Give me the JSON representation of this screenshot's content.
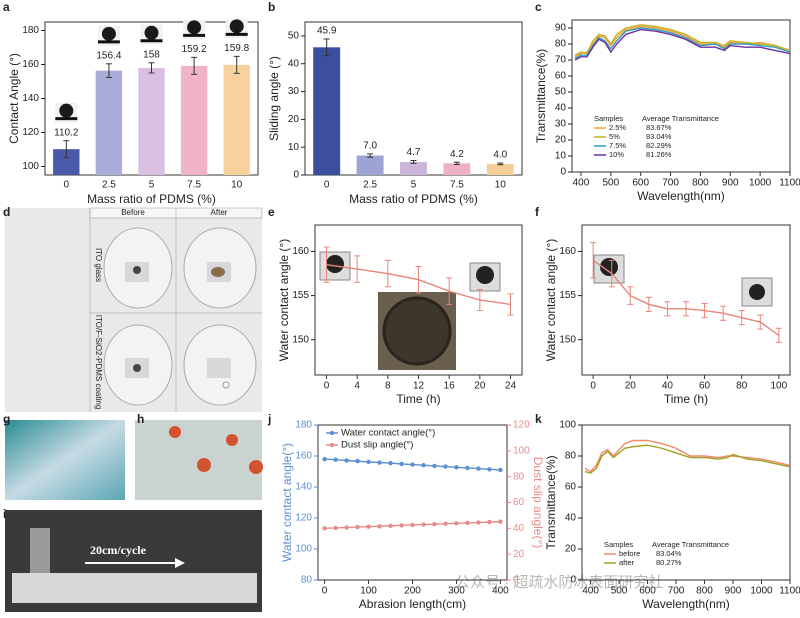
{
  "panel_labels": [
    "a",
    "b",
    "c",
    "d",
    "e",
    "f",
    "g",
    "h",
    "i",
    "j",
    "k"
  ],
  "photos": {
    "d": {
      "columns": [
        "Before",
        "After"
      ],
      "rows": [
        "ITO glass",
        "ITO/F-SiO2-PDMS coating"
      ]
    },
    "i": {
      "caption": "20cm/cycle"
    }
  },
  "watermark": "公众号 · 超疏水防冰表面研究社",
  "chart_data": [
    {
      "type": "bar",
      "xlabel": "Mass ratio of PDMS (%)",
      "ylabel": "Contact Angle (°)",
      "categories": [
        "0",
        "2.5",
        "5",
        "7.5",
        "10"
      ],
      "values": [
        110.2,
        156.4,
        158,
        159.2,
        159.8
      ],
      "errors": [
        5,
        4,
        3,
        5,
        5
      ],
      "colors": [
        "#4a5aa8",
        "#a9abd8",
        "#d9bfe0",
        "#f0b3c8",
        "#f7d29c"
      ],
      "droplets": true,
      "ylim": [
        95,
        185
      ],
      "yticks": [
        100,
        120,
        140,
        160,
        180
      ]
    },
    {
      "type": "bar",
      "xlabel": "Mass ratio of PDMS (%)",
      "ylabel": "Sliding angle (°)",
      "categories": [
        "0",
        "2.5",
        "5",
        "7.5",
        "10"
      ],
      "values": [
        45.9,
        7.0,
        4.7,
        4.2,
        4.0
      ],
      "value_labels": [
        "45.9",
        "7.0",
        "4.7",
        "4.2",
        "4.0"
      ],
      "errors": [
        3,
        0.6,
        0.5,
        0.4,
        0.3
      ],
      "colors": [
        "#3b4f9c",
        "#9da3d4",
        "#cdb6dc",
        "#eeb0c6",
        "#f6cf98"
      ],
      "ylim": [
        0,
        55
      ],
      "yticks": [
        0,
        10,
        20,
        30,
        40,
        50
      ]
    },
    {
      "type": "line",
      "xlabel": "Wavelength(nm)",
      "ylabel": "Transmittance(%)",
      "x": [
        380,
        400,
        420,
        440,
        460,
        480,
        500,
        520,
        550,
        600,
        650,
        700,
        750,
        800,
        850,
        880,
        900,
        950,
        1000,
        1050,
        1100
      ],
      "series": [
        {
          "name": "2.5%",
          "color": "#f0a040",
          "average_label": "83.67%",
          "values": [
            72,
            74,
            75,
            80,
            85,
            84,
            79,
            84,
            89,
            91,
            90,
            88,
            85,
            80,
            80,
            78,
            81,
            80,
            81,
            79,
            76
          ]
        },
        {
          "name": "5%",
          "color": "#c8b020",
          "average_label": "83.04%",
          "values": [
            73,
            75,
            74,
            82,
            86,
            85,
            80,
            86,
            90,
            92,
            91,
            89,
            86,
            81,
            81,
            79,
            82,
            81,
            80,
            79,
            76
          ]
        },
        {
          "name": "7.5%",
          "color": "#30a0b8",
          "average_label": "82.29%",
          "values": [
            71,
            73,
            73,
            79,
            84,
            82,
            77,
            82,
            88,
            90,
            89,
            87,
            84,
            79,
            80,
            77,
            80,
            80,
            79,
            78,
            75
          ]
        },
        {
          "name": "10%",
          "color": "#7030a0",
          "average_label": "81.26%",
          "values": [
            70,
            72,
            72,
            78,
            83,
            81,
            75,
            80,
            86,
            89,
            88,
            86,
            83,
            78,
            78,
            76,
            79,
            78,
            78,
            76,
            74
          ]
        }
      ],
      "legend": "lower left",
      "legend_titles": [
        "Samples",
        "Average Transmittance"
      ],
      "xlim": [
        370,
        1100
      ],
      "xticks": [
        400,
        500,
        600,
        700,
        800,
        900,
        1000,
        1100
      ],
      "ylim": [
        0,
        95
      ],
      "yticks": [
        0,
        10,
        20,
        30,
        40,
        50,
        60,
        70,
        80,
        90
      ]
    },
    {
      "type": "line",
      "xlabel": "Time (h)",
      "ylabel": "Water contact angle (°)",
      "x": [
        0,
        4,
        8,
        12,
        16,
        20,
        24
      ],
      "series": [
        {
          "color": "#e8857a",
          "values": [
            158.5,
            158,
            157.5,
            156.8,
            155.5,
            154.5,
            154
          ],
          "errors": [
            2,
            1.5,
            1.5,
            1.5,
            1.5,
            1.2,
            1.2
          ]
        }
      ],
      "xlim": [
        -1.5,
        25.5
      ],
      "xticks": [
        0,
        4,
        8,
        12,
        16,
        20,
        24
      ],
      "ylim": [
        146,
        163
      ],
      "yticks": [
        150,
        155,
        160
      ]
    },
    {
      "type": "line",
      "xlabel": "Time (h)",
      "ylabel": "Water contact angle (°)",
      "x": [
        0,
        10,
        20,
        30,
        40,
        50,
        60,
        70,
        80,
        90,
        100
      ],
      "series": [
        {
          "color": "#e8857a",
          "values": [
            159,
            157.5,
            155,
            154,
            153.5,
            153.5,
            153.3,
            153,
            152.5,
            152,
            150.5
          ],
          "errors": [
            2,
            1.5,
            1,
            0.8,
            0.8,
            0.8,
            0.8,
            0.8,
            0.8,
            0.8,
            0.8
          ]
        }
      ],
      "xlim": [
        -6,
        106
      ],
      "xticks": [
        0,
        20,
        40,
        60,
        80,
        100
      ],
      "ylim": [
        146,
        163
      ],
      "yticks": [
        150,
        155,
        160
      ]
    },
    {
      "type": "line",
      "xlabel": "Abrasion length(cm)",
      "ylabel": "Water contact angle(°)",
      "y2label": "Dust slip angle(°)",
      "x": [
        0,
        25,
        50,
        75,
        100,
        125,
        150,
        175,
        200,
        225,
        250,
        275,
        300,
        325,
        350,
        375,
        400
      ],
      "series": [
        {
          "name": "Water contact angle(°)",
          "color": "#5b8fd0",
          "values": [
            158,
            157.6,
            157.1,
            156.7,
            156.2,
            155.8,
            155.4,
            154.9,
            154.5,
            154.1,
            153.6,
            153.2,
            152.7,
            152.3,
            151.9,
            151.4,
            151
          ]
        },
        {
          "name": "Dust slip angle(°)",
          "color": "#e88a8a",
          "axis": "y2",
          "values": [
            40,
            40.3,
            40.6,
            41,
            41.3,
            41.6,
            41.9,
            42.3,
            42.6,
            42.9,
            43.2,
            43.6,
            43.9,
            44.2,
            44.5,
            44.9,
            45.2
          ]
        }
      ],
      "markers": true,
      "legend": "upper left",
      "xlim": [
        -15,
        415
      ],
      "xticks": [
        0,
        100,
        200,
        300,
        400
      ],
      "ylim": [
        80,
        180
      ],
      "yticks": [
        80,
        100,
        120,
        140,
        160,
        180
      ],
      "y2lim": [
        0,
        120
      ],
      "y2ticks": [
        0,
        20,
        40,
        60,
        80,
        100,
        120
      ]
    },
    {
      "type": "line",
      "xlabel": "Wavelength(nm)",
      "ylabel": "Transmittance(%)",
      "x": [
        380,
        400,
        420,
        440,
        460,
        480,
        500,
        520,
        550,
        600,
        650,
        700,
        750,
        800,
        850,
        880,
        900,
        950,
        1000,
        1050,
        1100
      ],
      "series": [
        {
          "name": "before",
          "color": "#f08a6a",
          "average_label": "83.04%",
          "values": [
            72,
            70,
            74,
            82,
            84,
            80,
            84,
            88,
            90,
            90,
            88,
            85,
            80,
            80,
            79,
            80,
            80,
            79,
            78,
            76,
            74
          ]
        },
        {
          "name": "after",
          "color": "#a0a020",
          "average_label": "80.27%",
          "values": [
            70,
            69,
            72,
            80,
            83,
            79,
            82,
            85,
            86,
            87,
            85,
            82,
            79,
            79,
            78,
            79,
            81,
            78,
            77,
            75,
            73
          ]
        }
      ],
      "legend": "lower left",
      "legend_titles": [
        "Samples",
        "Average Transmittance"
      ],
      "xlim": [
        370,
        1100
      ],
      "xticks": [
        400,
        500,
        600,
        700,
        800,
        900,
        1000,
        1100
      ],
      "ylim": [
        0,
        100
      ],
      "yticks": [
        0,
        20,
        40,
        60,
        80,
        100
      ]
    }
  ]
}
